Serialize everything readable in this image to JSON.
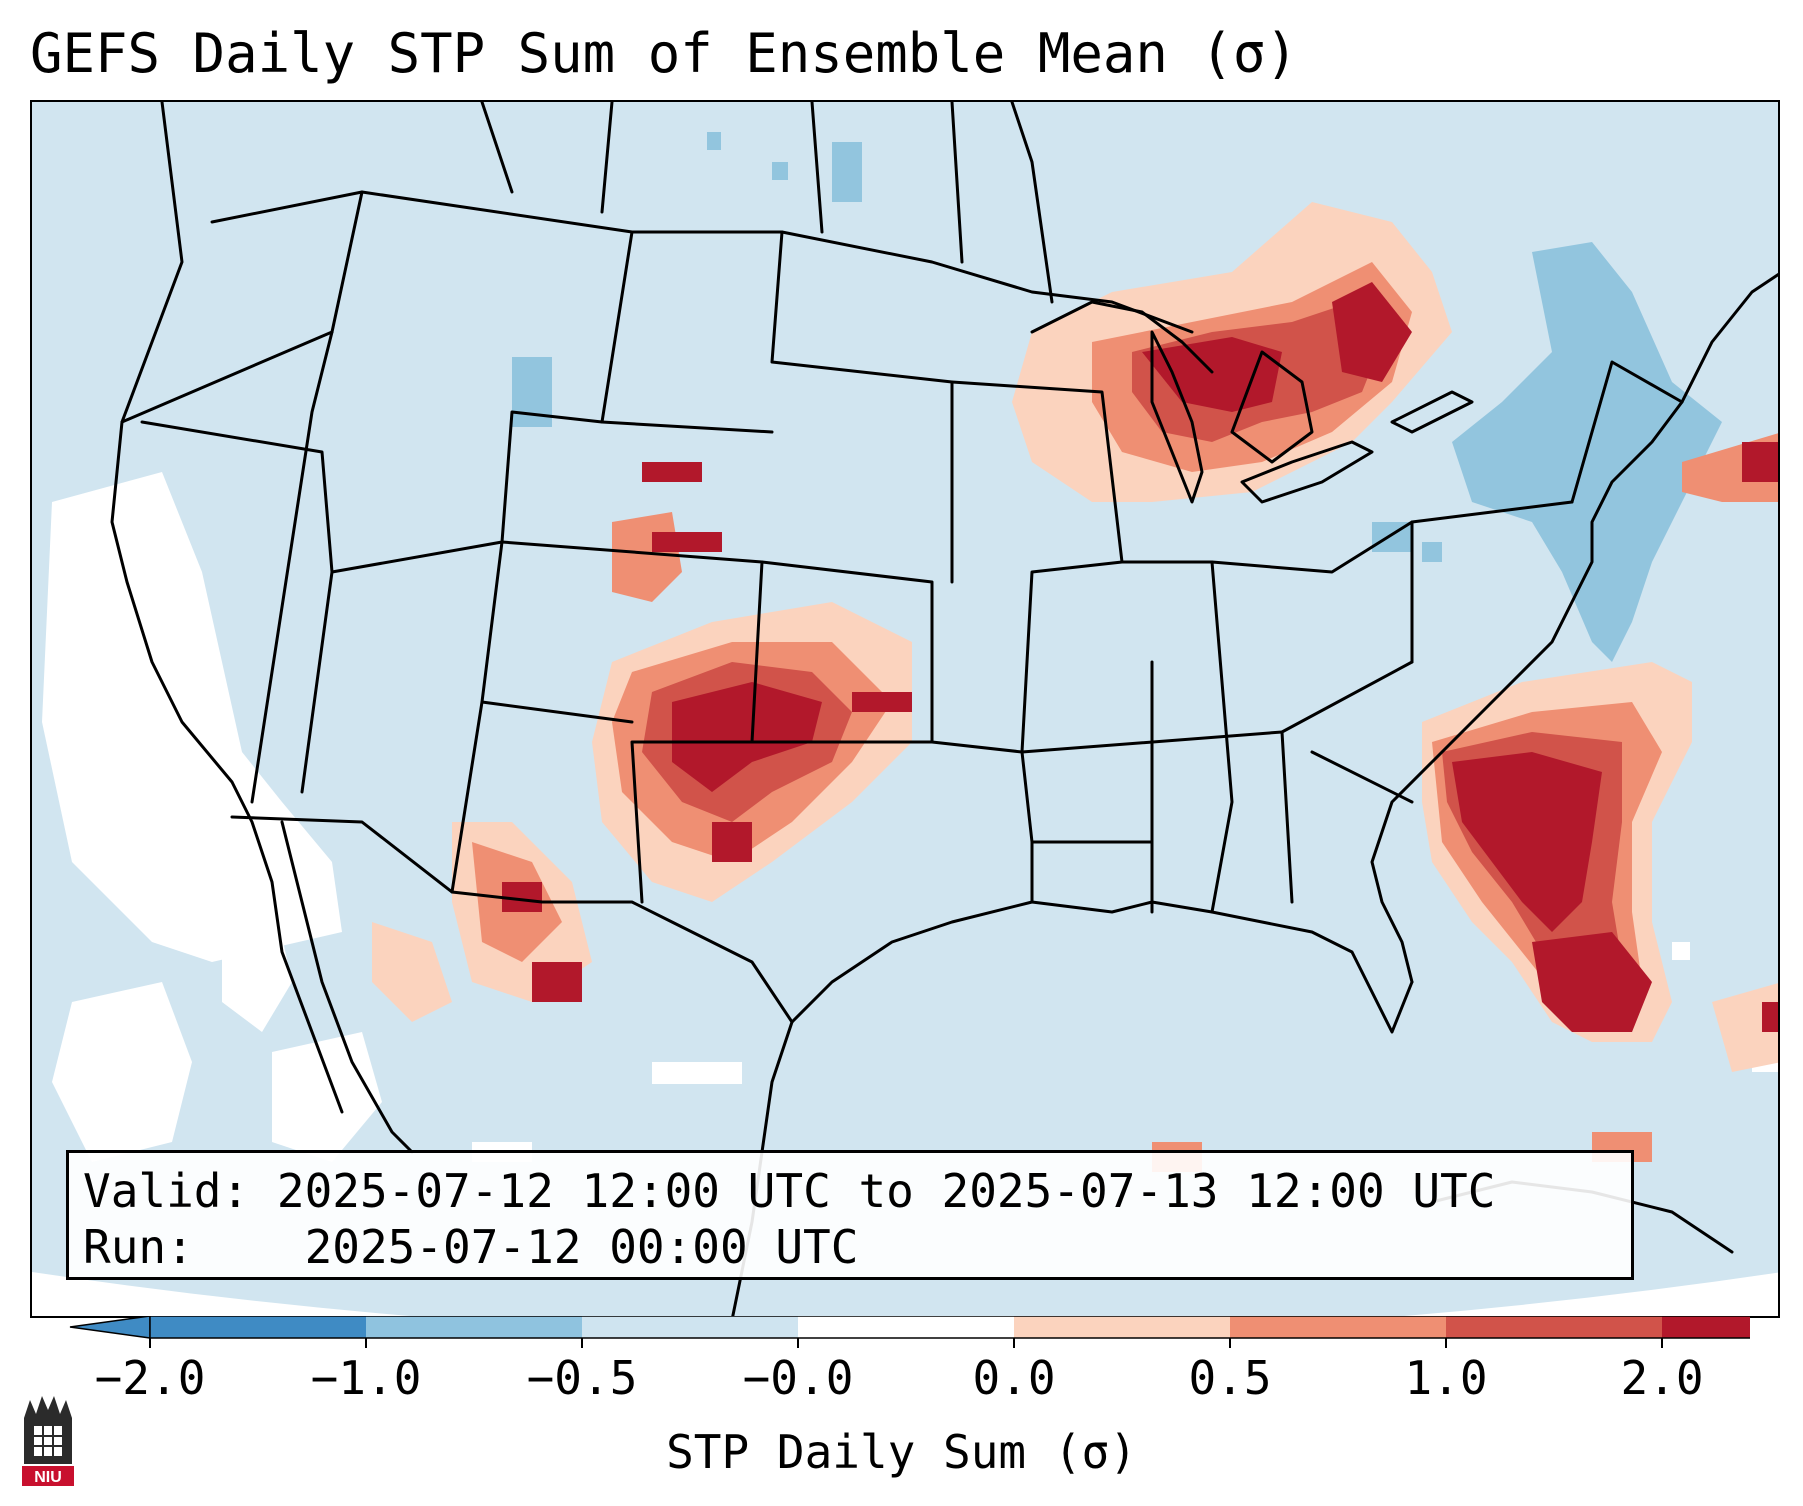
{
  "title": "GEFS Daily STP Sum of Ensemble Mean (σ)",
  "info": {
    "valid_label": "Valid:",
    "valid_value": "2025-07-12 12:00 UTC to 2025-07-13 12:00 UTC",
    "run_label": "Run:",
    "run_value": "2025-07-12 00:00 UTC"
  },
  "colorbar": {
    "label": "STP Daily Sum (σ)",
    "ticks": [
      "−2.0",
      "−1.0",
      "−0.5",
      "−0.0",
      "0.0",
      "0.5",
      "1.0",
      "2.0"
    ],
    "colors": [
      "#3f8bc4",
      "#8fc3df",
      "#cfe4f0",
      "#ffffff",
      "#fbd3be",
      "#ef8f73",
      "#d1534a",
      "#b2182b"
    ]
  },
  "logo": {
    "text": "NIU"
  }
}
